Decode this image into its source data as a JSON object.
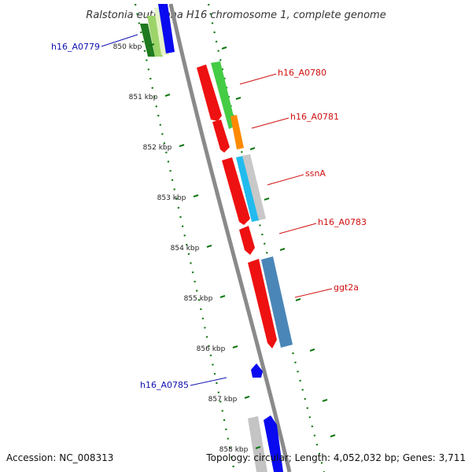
{
  "title": "Ralstonia eutropha H16 chromosome 1, complete genome",
  "footer": {
    "accession": "Accession: NC_008313",
    "topology": "Topology: circular; Length: 4,052,032 bp; Genes: 3,711"
  },
  "ticks": [
    {
      "label": "850 kbp"
    },
    {
      "label": "851 kbp"
    },
    {
      "label": "852 kbp"
    },
    {
      "label": "853 kbp"
    },
    {
      "label": "854 kbp"
    },
    {
      "label": "855 kbp"
    },
    {
      "label": "856 kbp"
    },
    {
      "label": "857 kbp"
    },
    {
      "label": "858 kbp"
    }
  ],
  "gene_labels": [
    {
      "text": "h16_A0779",
      "color": "#1010b0"
    },
    {
      "text": "h16_A0780",
      "color": "#d01010"
    },
    {
      "text": "h16_A0781",
      "color": "#d01010"
    },
    {
      "text": "ssnA",
      "color": "#d01010"
    },
    {
      "text": "h16_A0783",
      "color": "#d01010"
    },
    {
      "text": "ggt2a",
      "color": "#d01010"
    },
    {
      "text": "h16_A0785",
      "color": "#1010b0"
    }
  ],
  "colors": {
    "forward": "#ee1111",
    "reverse": "#0a0af0",
    "backbone": "#8a8a8a",
    "tick_green": "#117711"
  }
}
